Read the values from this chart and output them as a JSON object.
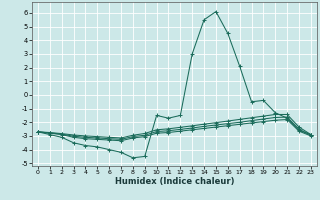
{
  "bg_color": "#cce8e8",
  "grid_color": "#ffffff",
  "line_color": "#1a6b5a",
  "xlabel": "Humidex (Indice chaleur)",
  "xlim": [
    -0.5,
    23.5
  ],
  "ylim": [
    -5.2,
    6.8
  ],
  "xticks": [
    0,
    1,
    2,
    3,
    4,
    5,
    6,
    7,
    8,
    9,
    10,
    11,
    12,
    13,
    14,
    15,
    16,
    17,
    18,
    19,
    20,
    21,
    22,
    23
  ],
  "yticks": [
    -5,
    -4,
    -3,
    -2,
    -1,
    0,
    1,
    2,
    3,
    4,
    5,
    6
  ],
  "x": [
    0,
    1,
    2,
    3,
    4,
    5,
    6,
    7,
    8,
    9,
    10,
    11,
    12,
    13,
    14,
    15,
    16,
    17,
    18,
    19,
    20,
    21,
    22,
    23
  ],
  "line1": [
    -2.7,
    -2.9,
    -3.1,
    -3.5,
    -3.7,
    -3.8,
    -4.0,
    -4.2,
    -4.6,
    -4.5,
    -1.5,
    -1.7,
    -1.5,
    3.0,
    5.5,
    6.1,
    4.5,
    2.1,
    -0.5,
    -0.4,
    -1.3,
    -1.7,
    -2.6,
    -2.9
  ],
  "line2": [
    -2.7,
    -2.8,
    -2.9,
    -3.1,
    -3.2,
    -3.25,
    -3.3,
    -3.35,
    -3.15,
    -3.05,
    -2.8,
    -2.75,
    -2.65,
    -2.55,
    -2.45,
    -2.35,
    -2.25,
    -2.15,
    -2.05,
    -1.95,
    -1.85,
    -1.8,
    -2.65,
    -3.0
  ],
  "line3": [
    -2.7,
    -2.78,
    -2.87,
    -3.02,
    -3.1,
    -3.15,
    -3.2,
    -3.25,
    -3.05,
    -2.95,
    -2.68,
    -2.62,
    -2.52,
    -2.42,
    -2.3,
    -2.2,
    -2.1,
    -2.0,
    -1.88,
    -1.76,
    -1.65,
    -1.62,
    -2.5,
    -2.95
  ],
  "line4": [
    -2.7,
    -2.75,
    -2.83,
    -2.93,
    -3.0,
    -3.05,
    -3.1,
    -3.15,
    -2.95,
    -2.82,
    -2.55,
    -2.48,
    -2.37,
    -2.26,
    -2.14,
    -2.03,
    -1.91,
    -1.79,
    -1.67,
    -1.55,
    -1.43,
    -1.43,
    -2.35,
    -2.9
  ]
}
